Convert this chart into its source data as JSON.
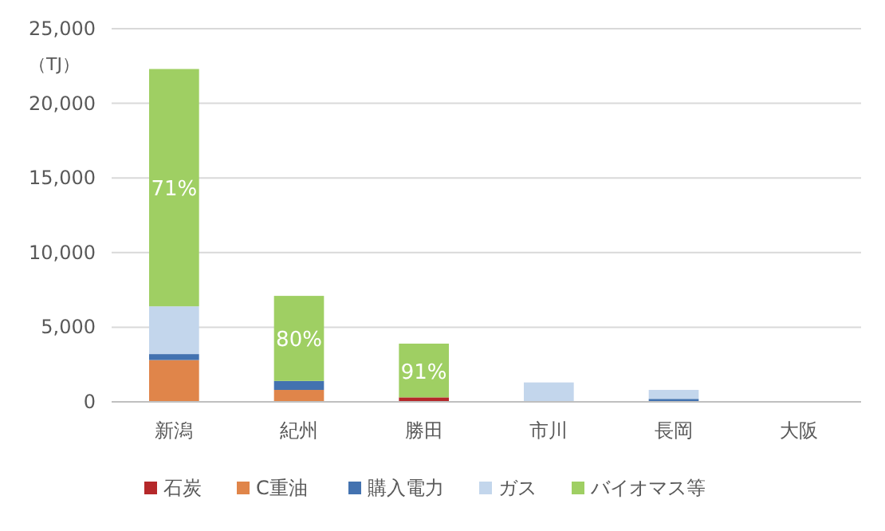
{
  "chart_data": {
    "type": "bar",
    "stacked": true,
    "ylabel": "（TJ）",
    "categories": [
      "新潟",
      "紀州",
      "勝田",
      "市川",
      "長岡",
      "大阪"
    ],
    "series": [
      {
        "name": "石炭",
        "color": "#b5282a",
        "values": [
          0,
          0,
          300,
          0,
          0,
          0
        ]
      },
      {
        "name": "C重油",
        "color": "#e0854a",
        "values": [
          2800,
          800,
          0,
          0,
          0,
          0
        ]
      },
      {
        "name": "購入電力",
        "color": "#4372b0",
        "values": [
          400,
          600,
          0,
          0,
          200,
          0
        ]
      },
      {
        "name": "ガス",
        "color": "#c3d6ec",
        "values": [
          3200,
          0,
          0,
          1300,
          600,
          0
        ]
      },
      {
        "name": "バイオマス等",
        "color": "#9fcf63",
        "values": [
          15900,
          5700,
          3600,
          0,
          0,
          0
        ]
      }
    ],
    "annotations": [
      "71%",
      "80%",
      "91%"
    ],
    "ylim": [
      0,
      25000
    ],
    "yticks": [
      {
        "value": 0,
        "label": "0"
      },
      {
        "value": 5000,
        "label": "5,000"
      },
      {
        "value": 10000,
        "label": "10,000"
      },
      {
        "value": 15000,
        "label": "15,000"
      },
      {
        "value": 20000,
        "label": "20,000"
      },
      {
        "value": 25000,
        "label": "25,000"
      }
    ],
    "grid": "y",
    "legend": "bottom"
  }
}
